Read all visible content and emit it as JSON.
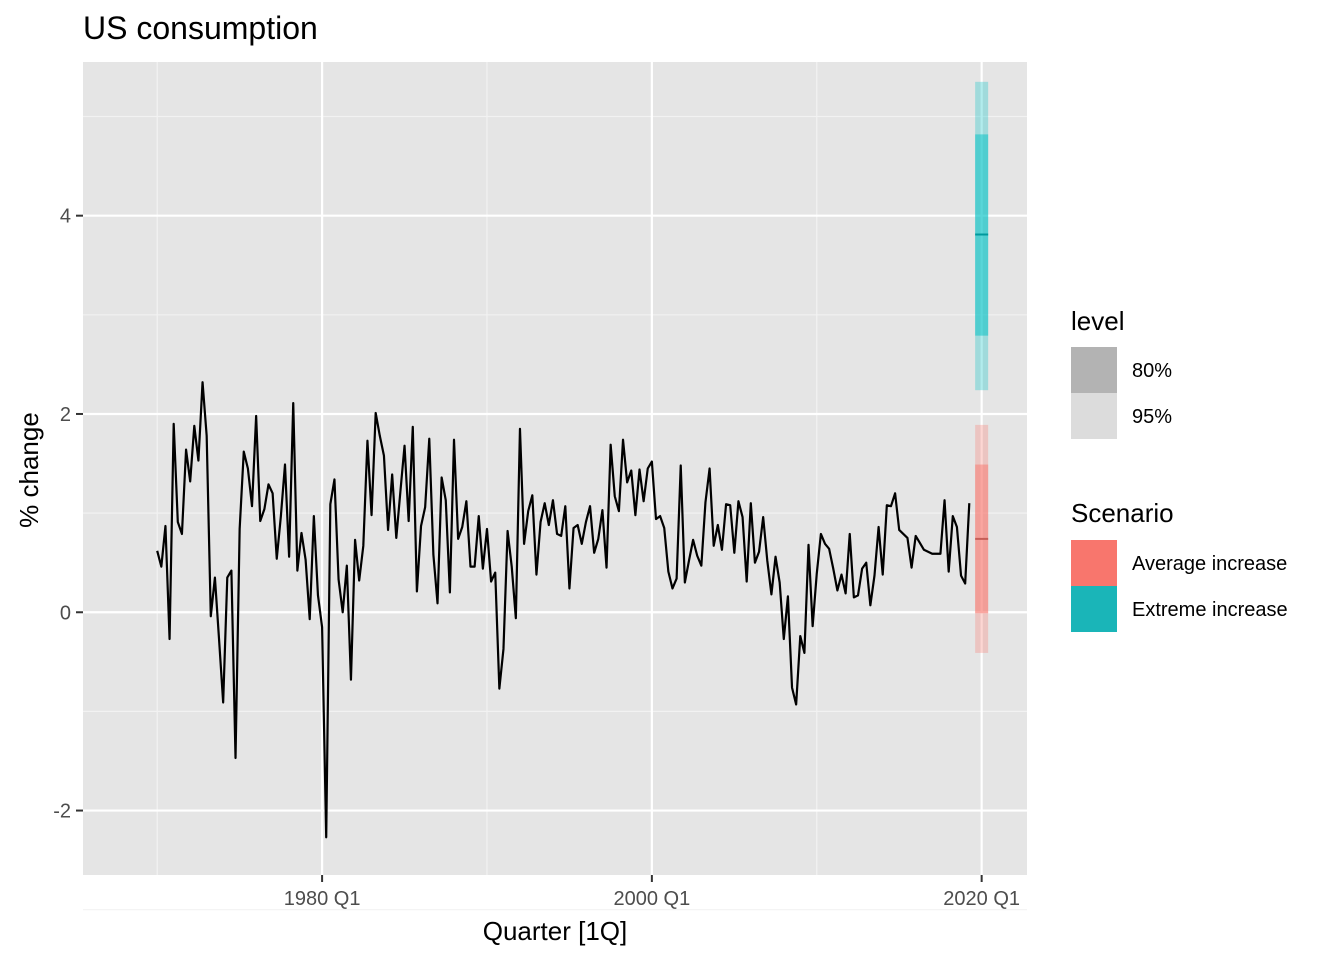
{
  "chart_data": {
    "type": "line",
    "title": "US consumption",
    "xlabel": "Quarter [1Q]",
    "ylabel": "% change",
    "x_ticks": [
      {
        "value": 1980,
        "label": "1980 Q1"
      },
      {
        "value": 2000,
        "label": "2000 Q1"
      },
      {
        "value": 2020,
        "label": "2020 Q1"
      }
    ],
    "x_minor_ticks": [
      1970,
      1990,
      2010
    ],
    "y_ticks": [
      {
        "value": -2,
        "label": "-2"
      },
      {
        "value": 0,
        "label": "0"
      },
      {
        "value": 2,
        "label": "2"
      },
      {
        "value": 4,
        "label": "4"
      }
    ],
    "y_minor_ticks": [
      -3,
      -1,
      1,
      3,
      5
    ],
    "xlim": [
      1965.5,
      2022.75
    ],
    "ylim": [
      -2.65,
      5.55
    ],
    "grid": true,
    "background": "#e5e5e5",
    "start_quarter": "1970 Q1",
    "series": [
      {
        "color": "#000000",
        "values": [
          0.62,
          0.46,
          0.87,
          -0.27,
          1.9,
          0.91,
          0.79,
          1.64,
          1.32,
          1.88,
          1.53,
          2.32,
          1.78,
          -0.04,
          0.35,
          -0.27,
          -0.91,
          0.35,
          0.42,
          -1.47,
          0.84,
          1.62,
          1.45,
          1.07,
          1.98,
          0.92,
          1.04,
          1.29,
          1.2,
          0.54,
          0.97,
          1.49,
          0.56,
          2.11,
          0.42,
          0.8,
          0.53,
          -0.07,
          0.97,
          0.17,
          -0.15,
          -2.27,
          1.09,
          1.34,
          0.33,
          0.0,
          0.47,
          -0.68,
          0.73,
          0.32,
          0.67,
          1.73,
          0.98,
          2.01,
          1.78,
          1.58,
          0.83,
          1.39,
          0.75,
          1.22,
          1.68,
          0.92,
          1.87,
          0.21,
          0.87,
          1.06,
          1.75,
          0.58,
          0.09,
          1.36,
          1.13,
          0.2,
          1.74,
          0.74,
          0.86,
          1.12,
          0.46,
          0.46,
          0.97,
          0.44,
          0.84,
          0.31,
          0.4,
          -0.77,
          -0.37,
          0.82,
          0.46,
          -0.06,
          1.85,
          0.69,
          1.02,
          1.18,
          0.38,
          0.91,
          1.1,
          0.88,
          1.13,
          0.79,
          0.77,
          1.07,
          0.24,
          0.85,
          0.88,
          0.69,
          0.91,
          1.07,
          0.6,
          0.74,
          1.03,
          0.45,
          1.69,
          1.17,
          1.02,
          1.74,
          1.31,
          1.43,
          0.98,
          1.44,
          1.12,
          1.45,
          1.52,
          0.94,
          0.97,
          0.85,
          0.41,
          0.24,
          0.34,
          1.48,
          0.3,
          0.52,
          0.73,
          0.57,
          0.47,
          1.11,
          1.45,
          0.67,
          0.88,
          0.63,
          1.09,
          1.08,
          0.6,
          1.12,
          0.96,
          0.31,
          1.1,
          0.5,
          0.61,
          0.96,
          0.52,
          0.18,
          0.56,
          0.3,
          -0.27,
          0.16,
          -0.76,
          -0.93,
          -0.24,
          -0.41,
          0.68,
          -0.14,
          0.39,
          0.79,
          0.69,
          0.64,
          0.44,
          0.22,
          0.38,
          0.19,
          0.79,
          0.15,
          0.17,
          0.44,
          0.5,
          0.07,
          0.37,
          0.86,
          0.38,
          1.08,
          1.07,
          1.2,
          0.83,
          0.79,
          0.75,
          0.45,
          0.77,
          0.7,
          0.63,
          0.61,
          0.59,
          0.59,
          0.59,
          1.13,
          0.41,
          0.97,
          0.86,
          0.37,
          0.29,
          1.1
        ]
      }
    ],
    "forecasts": [
      {
        "scenario": "Average increase",
        "color": "#f8766d",
        "x": 2020.0,
        "mean": 0.74,
        "lower80": -0.01,
        "upper80": 1.49,
        "lower95": -0.41,
        "upper95": 1.89
      },
      {
        "scenario": "Extreme increase",
        "color": "#00bfc4",
        "x": 2020.0,
        "mean": 3.81,
        "lower80": 2.79,
        "upper80": 4.82,
        "lower95": 2.24,
        "upper95": 5.35
      }
    ],
    "legend": {
      "position": "right",
      "level": {
        "title": "level",
        "items": [
          {
            "label": "80%",
            "color": "#b3b3b3"
          },
          {
            "label": "95%",
            "color": "#dcdcdc"
          }
        ]
      },
      "scenario": {
        "title": "Scenario",
        "items": [
          {
            "label": "Average increase",
            "color": "#f8766d"
          },
          {
            "label": "Extreme increase",
            "color": "#1ab5b8"
          }
        ]
      }
    }
  }
}
